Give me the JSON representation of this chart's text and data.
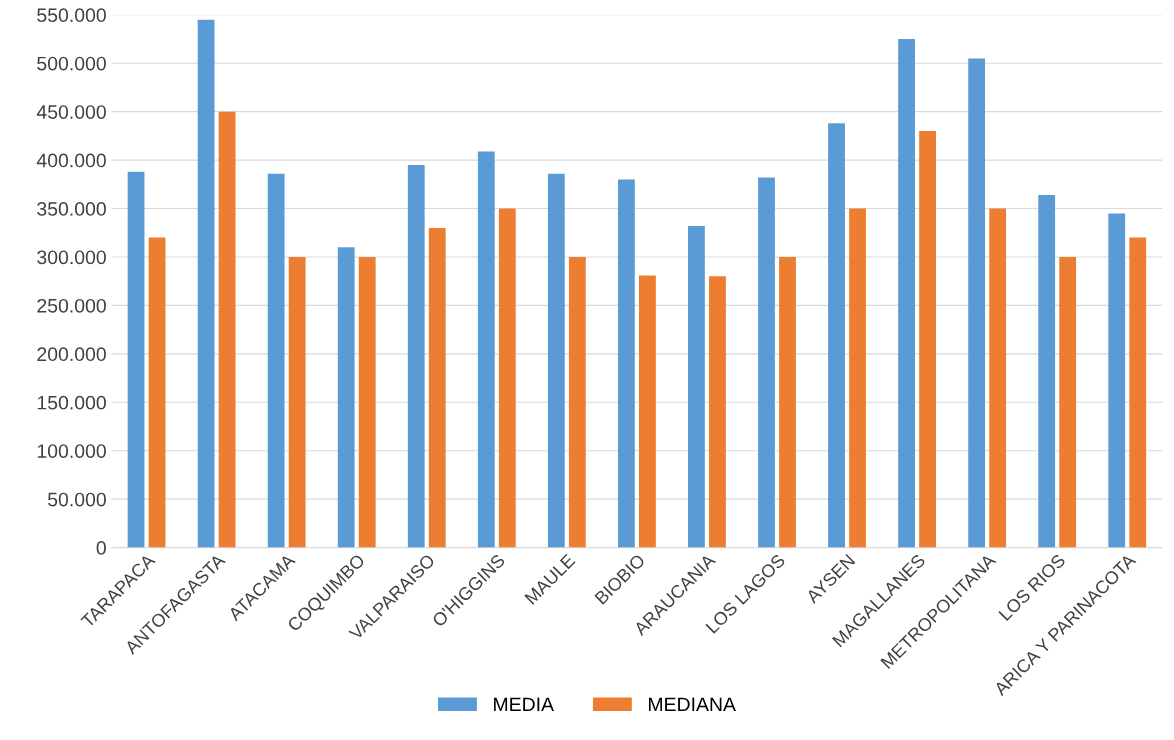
{
  "chart_data": {
    "type": "bar",
    "categories": [
      "TARAPACA",
      "ANTOFAGASTA",
      "ATACAMA",
      "COQUIMBO",
      "VALPARAISO",
      "O'HIGGINS",
      "MAULE",
      "BIOBIO",
      "ARAUCANIA",
      "LOS LAGOS",
      "AYSEN",
      "MAGALLANES",
      "METROPOLITANA",
      "LOS RIOS",
      "ARICA Y PARINACOTA"
    ],
    "series": [
      {
        "name": "MEDIA",
        "color": "#5b9bd5",
        "values": [
          388000,
          545000,
          386000,
          310000,
          395000,
          409000,
          386000,
          380000,
          332000,
          382000,
          438000,
          525000,
          505000,
          364000,
          345000
        ]
      },
      {
        "name": "MEDIANA",
        "color": "#ed7d31",
        "values": [
          320000,
          450000,
          300000,
          300000,
          330000,
          350000,
          300000,
          281000,
          280000,
          300000,
          350000,
          430000,
          350000,
          300000,
          320000
        ]
      }
    ],
    "ylim": [
      0,
      550000
    ],
    "yticks": [
      0,
      {
        "value": 50000,
        "label": "50.000"
      },
      {
        "value": 100000,
        "label": "100.000"
      },
      {
        "value": 150000,
        "label": "150.000"
      },
      {
        "value": 200000,
        "label": "200.000"
      },
      {
        "value": 250000,
        "label": "250.000"
      },
      {
        "value": 300000,
        "label": "300.000"
      },
      {
        "value": 350000,
        "label": "350.000"
      },
      {
        "value": 400000,
        "label": "400.000"
      },
      {
        "value": 450000,
        "label": "450.000"
      },
      {
        "value": 500000,
        "label": "500.000"
      },
      {
        "value": 550000,
        "label": "550.000"
      }
    ],
    "grid": "y",
    "legend": "bottom"
  }
}
